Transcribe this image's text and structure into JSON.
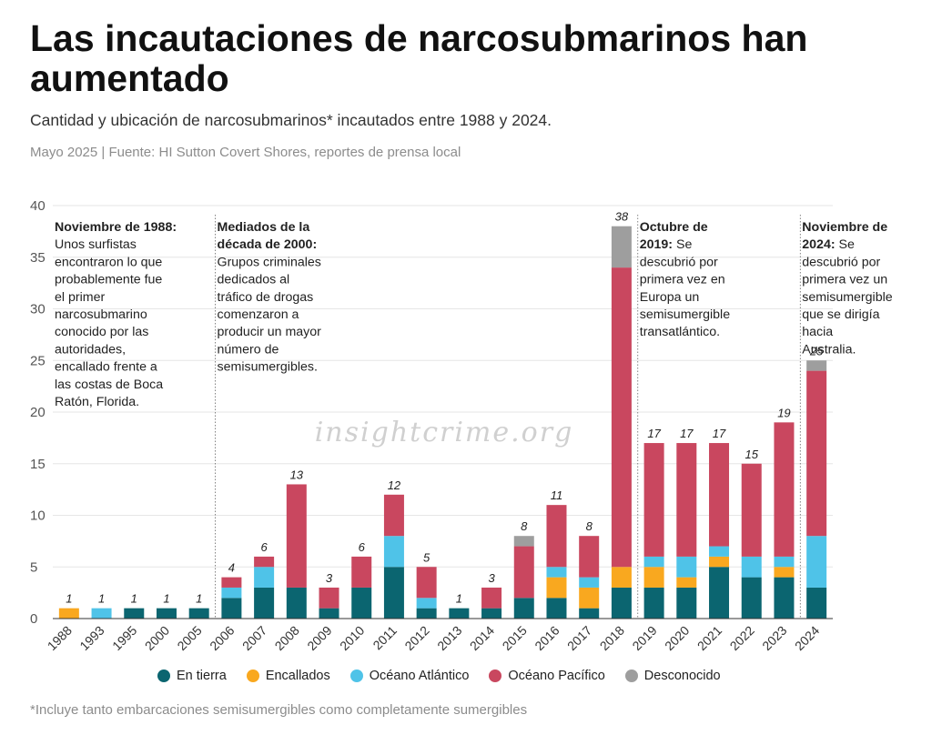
{
  "header": {
    "title": "Las incautaciones de narcosubmarinos han aumentado",
    "subtitle": "Cantidad y ubicación de narcosubmarinos* incautados entre 1988 y 2024.",
    "meta": "Mayo 2025 | Fuente: HI Sutton Covert Shores, reportes de prensa local"
  },
  "watermark": "insightcrime.org",
  "footnote": "*Incluye tanto embarcaciones semisumergibles como completamente sumergibles",
  "chart_data": {
    "type": "bar",
    "stacked": true,
    "title": "Las incautaciones de narcosubmarinos han aumentado",
    "xlabel": "",
    "ylabel": "",
    "ylim": [
      0,
      40
    ],
    "yticks": [
      0,
      5,
      10,
      15,
      20,
      25,
      30,
      35,
      40
    ],
    "grid": true,
    "legend_position": "bottom",
    "categories": [
      "1988",
      "1993",
      "1995",
      "2000",
      "2005",
      "2006",
      "2007",
      "2008",
      "2009",
      "2010",
      "2011",
      "2012",
      "2013",
      "2014",
      "2015",
      "2016",
      "2017",
      "2018",
      "2019",
      "2020",
      "2021",
      "2022",
      "2023",
      "2024"
    ],
    "series": [
      {
        "name": "En tierra",
        "color": "#0b6570",
        "values": [
          0,
          0,
          1,
          1,
          1,
          2,
          3,
          3,
          1,
          3,
          5,
          1,
          1,
          1,
          2,
          2,
          1,
          3,
          3,
          3,
          5,
          4,
          4,
          3
        ]
      },
      {
        "name": "Encallados",
        "color": "#f9a81f",
        "values": [
          1,
          0,
          0,
          0,
          0,
          0,
          0,
          0,
          0,
          0,
          0,
          0,
          0,
          0,
          0,
          2,
          2,
          2,
          2,
          1,
          1,
          0,
          1,
          0
        ]
      },
      {
        "name": "Océano Atlántico",
        "color": "#4fc3e8",
        "values": [
          0,
          1,
          0,
          0,
          0,
          1,
          2,
          0,
          0,
          0,
          3,
          1,
          0,
          0,
          0,
          1,
          1,
          0,
          1,
          2,
          1,
          2,
          1,
          5
        ]
      },
      {
        "name": "Océano Pacífico",
        "color": "#c9475f",
        "values": [
          0,
          0,
          0,
          0,
          0,
          1,
          1,
          10,
          2,
          3,
          4,
          3,
          0,
          2,
          5,
          6,
          4,
          29,
          11,
          11,
          10,
          9,
          13,
          16
        ]
      },
      {
        "name": "Desconocido",
        "color": "#9e9e9e",
        "values": [
          0,
          0,
          0,
          0,
          0,
          0,
          0,
          0,
          0,
          0,
          0,
          0,
          0,
          0,
          1,
          0,
          0,
          4,
          0,
          0,
          0,
          0,
          0,
          1
        ]
      }
    ],
    "totals": [
      1,
      1,
      1,
      1,
      1,
      4,
      6,
      13,
      3,
      6,
      12,
      5,
      1,
      3,
      8,
      11,
      8,
      38,
      17,
      17,
      17,
      15,
      19,
      25
    ],
    "annotations": [
      {
        "after_category": null,
        "bold": "Noviembre de 1988:",
        "text": " Unos surfistas encontraron lo que probablemente fue el primer narcosubmarino conocido por las autoridades, encallado frente a las costas de Boca Ratón, Florida."
      },
      {
        "after_category": "2005",
        "bold": "Mediados de la década de 2000:",
        "text": " Grupos criminales dedicados al tráfico de drogas comenzaron a producir un mayor número de semisumergibles."
      },
      {
        "after_category": "2018",
        "bold": "Octubre de 2019:",
        "text": " Se descubrió por primera vez en Europa un semisumergible transatlántico."
      },
      {
        "after_category": "2023",
        "bold": "Noviembre de 2024:",
        "text": " Se descubrió por primera vez un semisumergible que se dirigía hacia Australia."
      }
    ]
  }
}
